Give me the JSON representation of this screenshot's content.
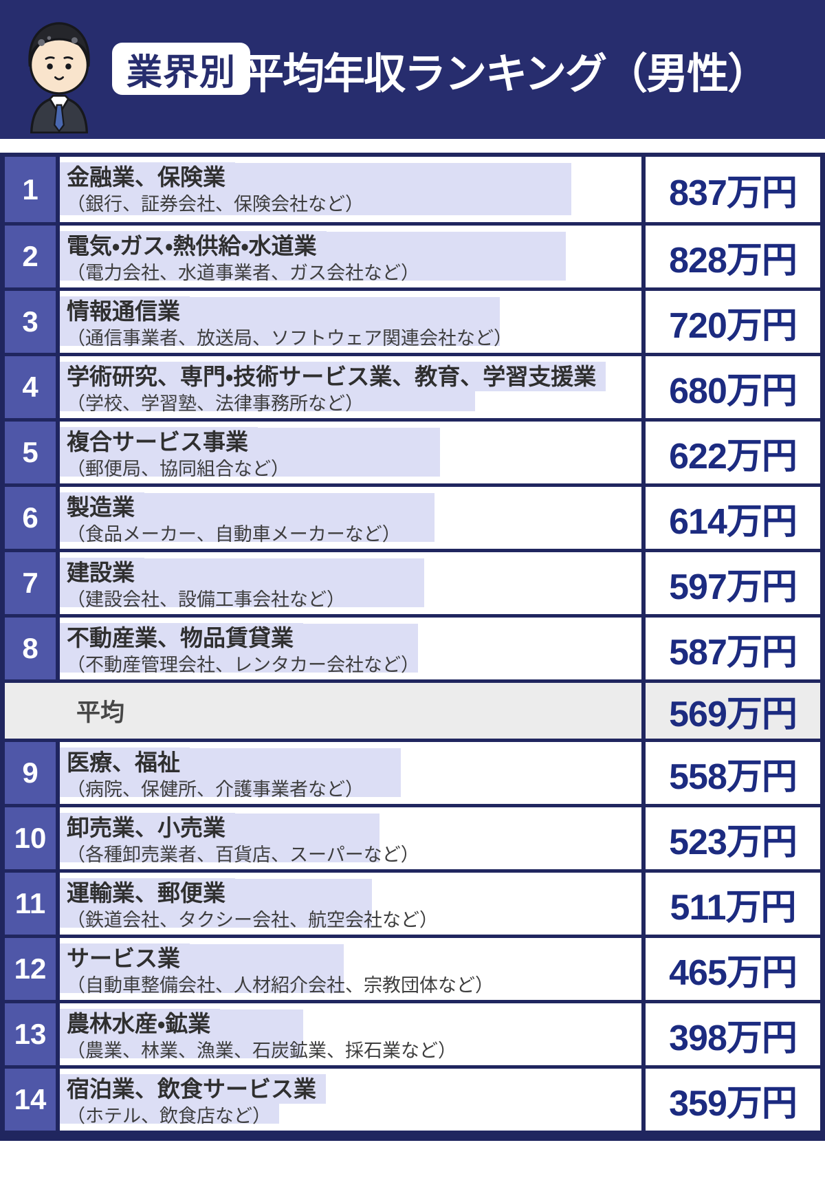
{
  "header": {
    "badge": "業界別",
    "title": "平均年収ランキング（男性）"
  },
  "table": {
    "rows": [
      {
        "rank": "1",
        "title": "金融業、保険業",
        "subtitle": "（銀行、証券会社、保険会社など）",
        "value": 837,
        "value_text": "837万円"
      },
      {
        "rank": "2",
        "title": "電気・ガス・熱供給・水道業",
        "subtitle": "（電力会社、水道事業者、ガス会社など）",
        "value": 828,
        "value_text": "828万円"
      },
      {
        "rank": "3",
        "title": "情報通信業",
        "subtitle": "（通信事業者、放送局、ソフトウェア関連会社など）",
        "value": 720,
        "value_text": "720万円"
      },
      {
        "rank": "4",
        "title": "学術研究、専門・技術サービス業、教育、学習支援業",
        "subtitle": "（学校、学習塾、法律事務所など）",
        "value": 680,
        "value_text": "680万円"
      },
      {
        "rank": "5",
        "title": "複合サービス事業",
        "subtitle": "（郵便局、協同組合など）",
        "value": 622,
        "value_text": "622万円"
      },
      {
        "rank": "6",
        "title": "製造業",
        "subtitle": "（食品メーカー、自動車メーカーなど）",
        "value": 614,
        "value_text": "614万円"
      },
      {
        "rank": "7",
        "title": "建設業",
        "subtitle": "（建設会社、設備工事会社など）",
        "value": 597,
        "value_text": "597万円"
      },
      {
        "rank": "8",
        "title": "不動産業、物品賃貸業",
        "subtitle": "（不動産管理会社、レンタカー会社など）",
        "value": 587,
        "value_text": "587万円"
      },
      {
        "rank": "9",
        "title": "医療、福祉",
        "subtitle": "（病院、保健所、介護事業者など）",
        "value": 558,
        "value_text": "558万円"
      },
      {
        "rank": "10",
        "title": "卸売業、小売業",
        "subtitle": "（各種卸売業者、百貨店、スーパーなど）",
        "value": 523,
        "value_text": "523万円"
      },
      {
        "rank": "11",
        "title": "運輸業、郵便業",
        "subtitle": "（鉄道会社、タクシー会社、航空会社など）",
        "value": 511,
        "value_text": "511万円"
      },
      {
        "rank": "12",
        "title": "サービス業",
        "subtitle": "（自動車整備会社、人材紹介会社、宗教団体など）",
        "value": 465,
        "value_text": "465万円"
      },
      {
        "rank": "13",
        "title": "農林水産・鉱業",
        "subtitle": "（農業、林業、漁業、石炭鉱業、採石業など）",
        "value": 398,
        "value_text": "398万円"
      },
      {
        "rank": "14",
        "title": "宿泊業、飲食サービス業",
        "subtitle": "（ホテル、飲食店など）",
        "value": 359,
        "value_text": "359万円"
      }
    ],
    "average": {
      "label": "平均",
      "value": 569,
      "value_text": "569万円"
    }
  },
  "chart_data": {
    "type": "bar",
    "orientation": "horizontal",
    "title": "業界別 平均年収ランキング（男性）",
    "unit": "万円",
    "categories": [
      "金融業、保険業",
      "電気・ガス・熱供給・水道業",
      "情報通信業",
      "学術研究、専門・技術サービス業、教育、学習支援業",
      "複合サービス事業",
      "製造業",
      "建設業",
      "不動産業、物品賃貸業",
      "医療、福祉",
      "卸売業、小売業",
      "運輸業、郵便業",
      "サービス業",
      "農林水産・鉱業",
      "宿泊業、飲食サービス業"
    ],
    "values": [
      837,
      828,
      720,
      680,
      622,
      614,
      597,
      587,
      558,
      523,
      511,
      465,
      398,
      359
    ],
    "average": 569,
    "xlim": [
      0,
      905
    ]
  },
  "colors": {
    "header_navy": "#272d6e",
    "border_navy": "#20265f",
    "rank_indigo": "#4f57a8",
    "bar_lavender": "#dcdef5",
    "value_navy": "#1c2b80",
    "average_gray": "#ececec"
  }
}
